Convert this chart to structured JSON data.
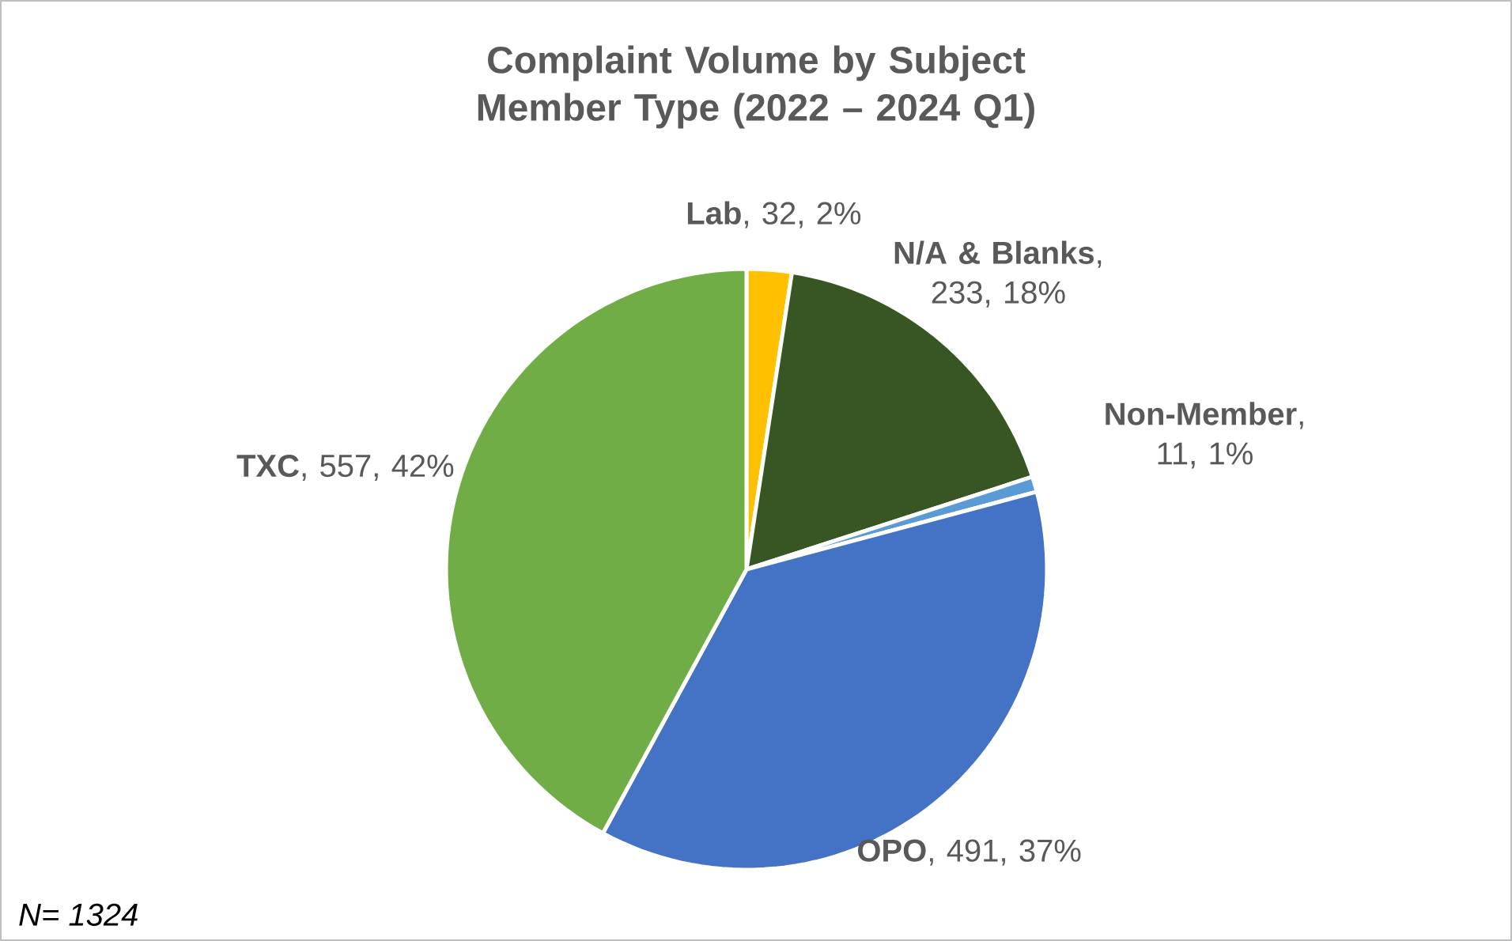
{
  "chart_data": {
    "type": "pie",
    "title": "Complaint Volume by Subject Member Type (2022 – 2024 Q1)",
    "categories": [
      "Lab",
      "N/A & Blanks",
      "Non-Member",
      "OPO",
      "TXC"
    ],
    "values": [
      32,
      233,
      11,
      491,
      557
    ],
    "value_labels": [
      ", 32, 2%",
      ", 233, 18%",
      ", 11, 1%",
      ", 491, 37%",
      ", 557, 42%"
    ],
    "colors": [
      "#ffc000",
      "#375623",
      "#5b9bd5",
      "#4472c4",
      "#70ad47"
    ],
    "annotations": [
      "N= 1324"
    ],
    "legend": false
  }
}
